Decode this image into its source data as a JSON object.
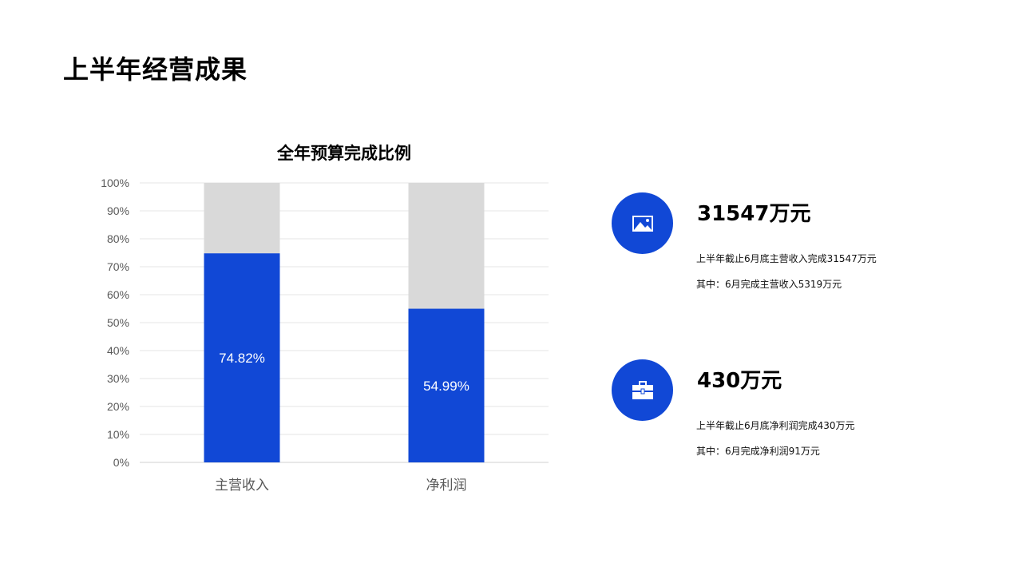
{
  "page": {
    "title": "上半年经营成果"
  },
  "colors": {
    "accent": "#1148D6",
    "remainder": "#D9D9D9",
    "grid": "#E6E6E6",
    "axis_text": "#595959"
  },
  "chart_data": {
    "type": "bar",
    "stacked": true,
    "title": "全年预算完成比例",
    "categories": [
      "主营收入",
      "净利润"
    ],
    "series": [
      {
        "values": [
          74.82,
          54.99
        ],
        "labels": [
          "74.82%",
          "54.99%"
        ],
        "color": "#1148D6"
      },
      {
        "values": [
          25.18,
          45.01
        ],
        "color": "#D9D9D9"
      }
    ],
    "ylim": [
      0,
      100
    ],
    "yticks": [
      "0%",
      "10%",
      "20%",
      "30%",
      "40%",
      "50%",
      "60%",
      "70%",
      "80%",
      "90%",
      "100%"
    ],
    "grid": true,
    "legend": "none"
  },
  "stats": [
    {
      "icon": "image-icon",
      "value": "31547万元",
      "line1": "上半年截止6月底主营收入完成31547万元",
      "line2": "其中：6月完成主营收入5319万元"
    },
    {
      "icon": "toolbox-icon",
      "value": "430万元",
      "line1": "上半年截止6月底净利润完成430万元",
      "line2": "其中：6月完成净利润91万元"
    }
  ]
}
